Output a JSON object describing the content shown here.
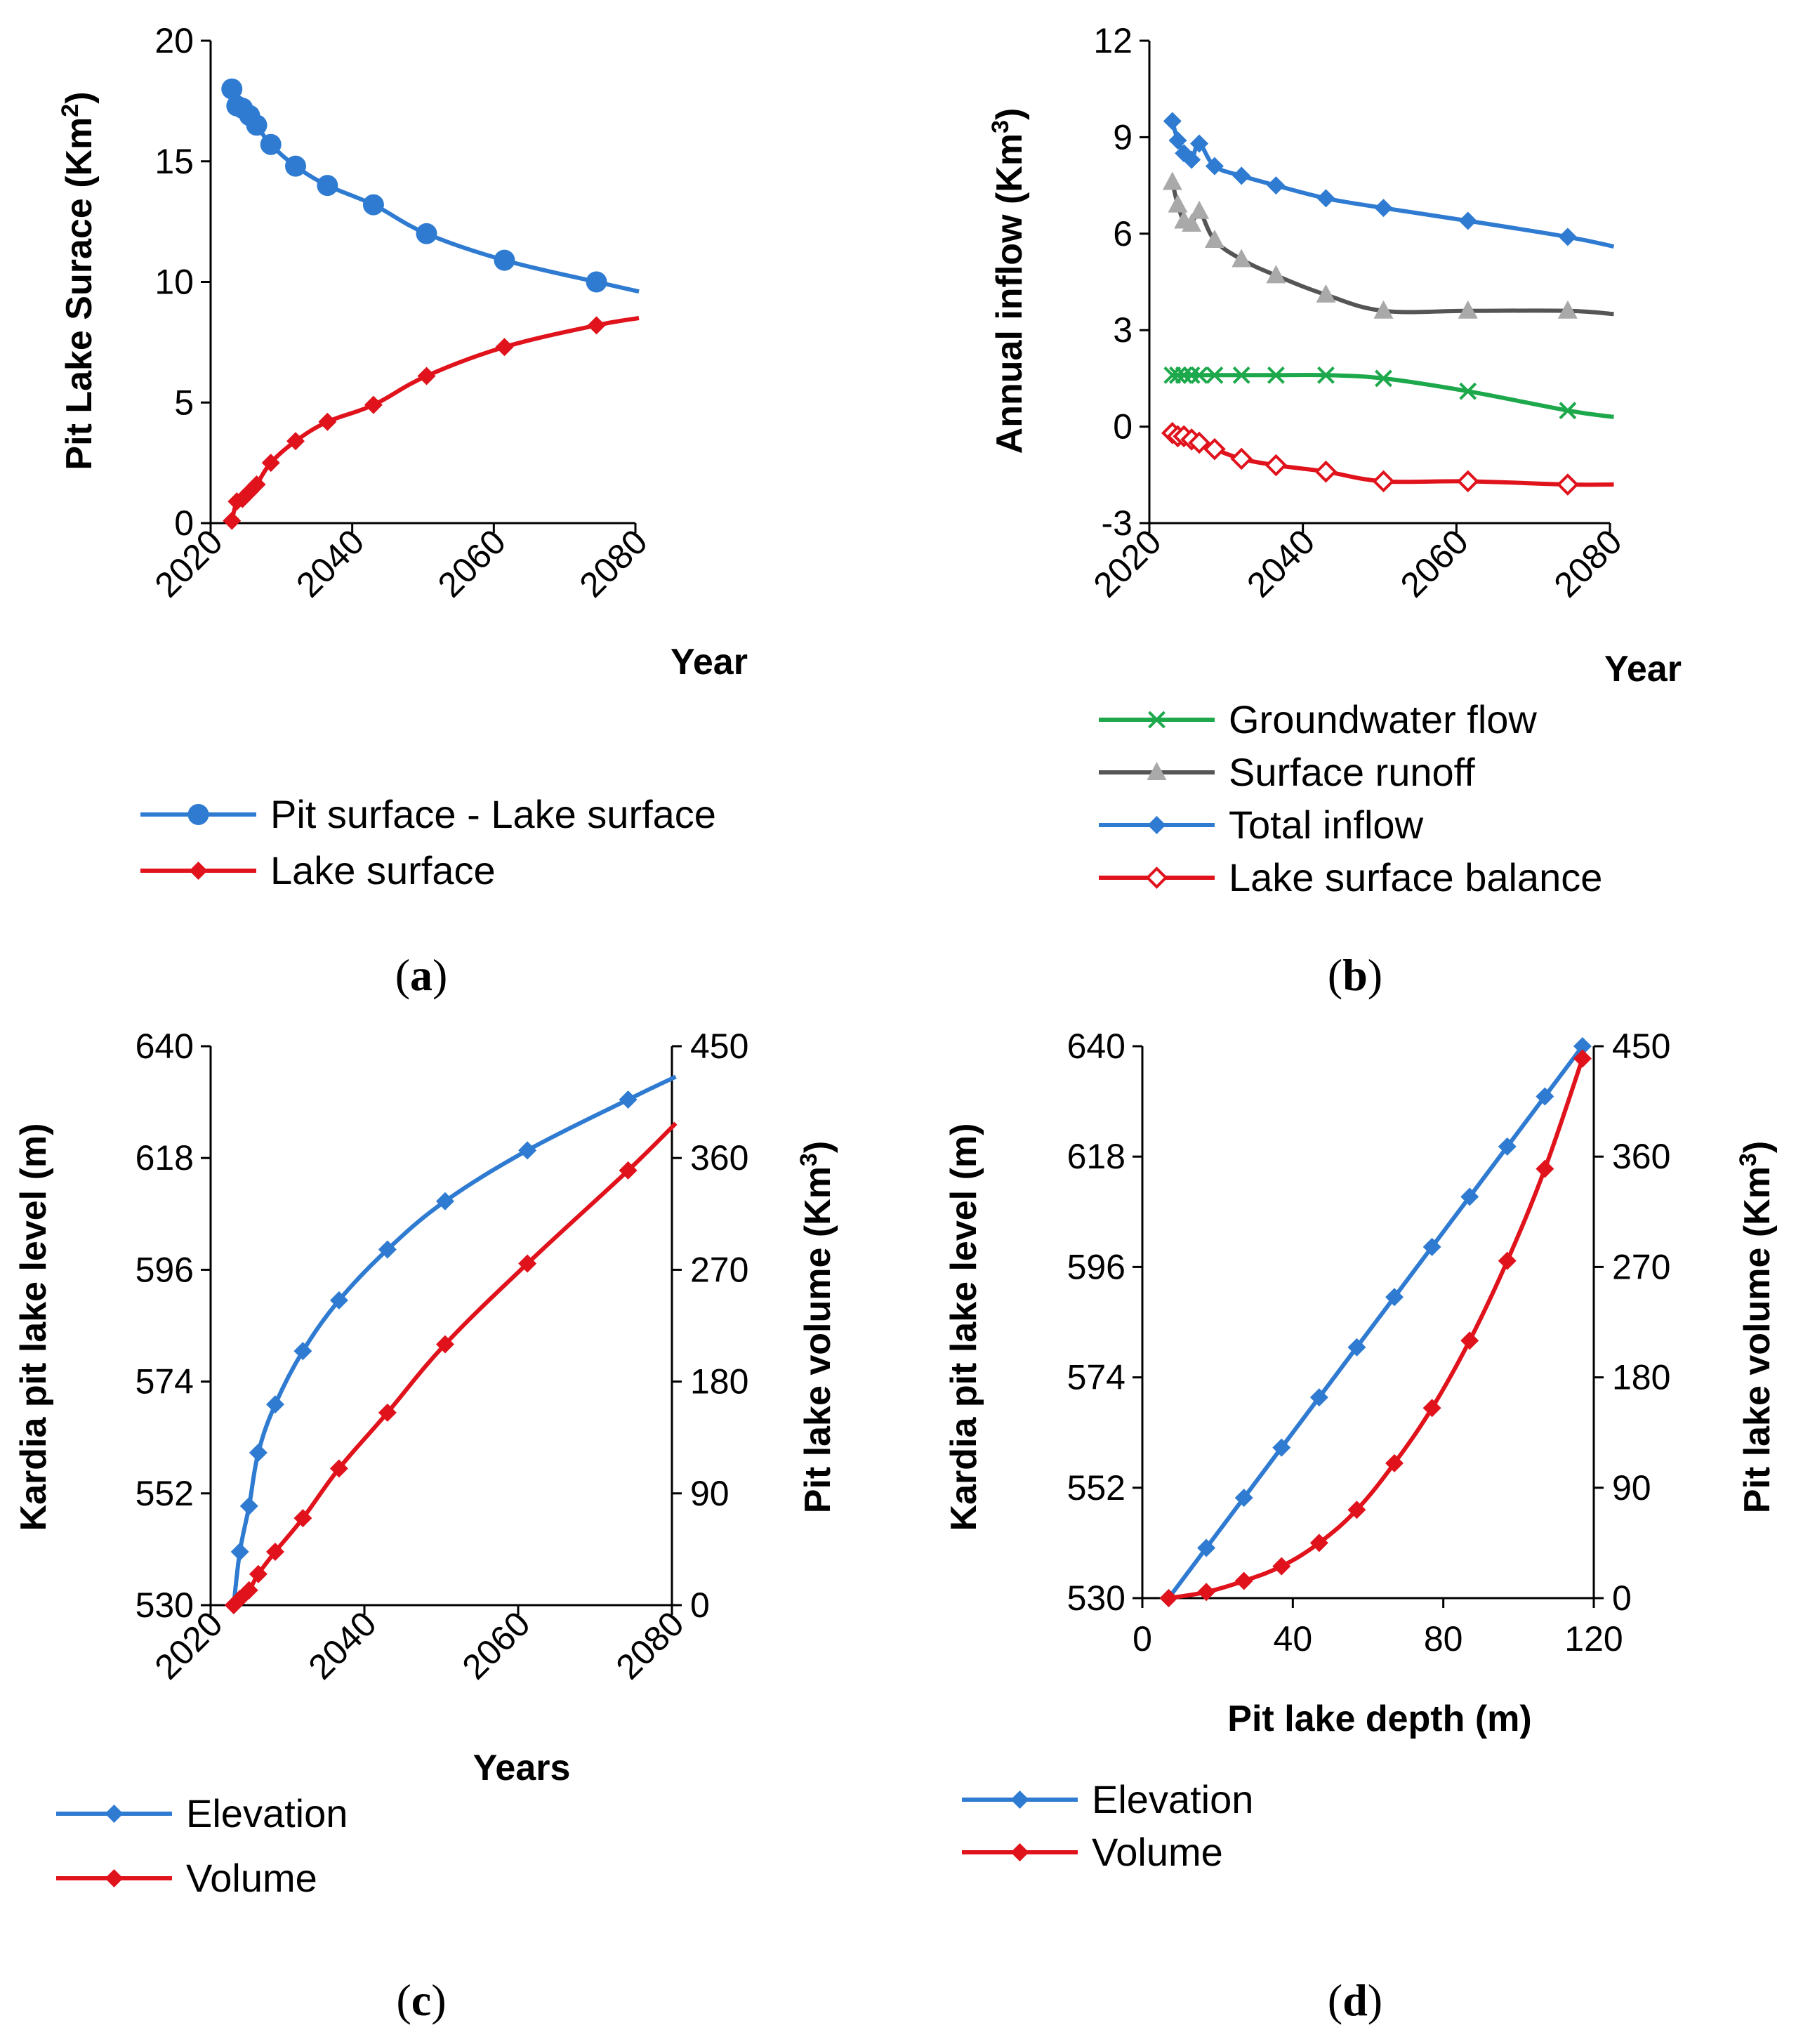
{
  "colors": {
    "blue": "#2e7bd1",
    "red": "#e0121b",
    "gray": "#555555",
    "gray_marker": "#a9a9a9",
    "green": "#1ca84b"
  },
  "chart_data": [
    {
      "id": "a",
      "type": "line",
      "caption_label": "a",
      "xlabel": "Year",
      "ylabel_parts": [
        "Pit Lake Surace (Km",
        "2",
        ")"
      ],
      "xlim": [
        2020,
        2080
      ],
      "ylim": [
        0,
        20
      ],
      "xticks": [
        "2020",
        "2040",
        "2060",
        "2080"
      ],
      "yticks": [
        "0",
        "5",
        "10",
        "15",
        "20"
      ],
      "series": [
        {
          "name": "Pit surface - Lake surface",
          "color": "blue",
          "marker": "circle",
          "x": [
            2023,
            2023.7,
            2024.5,
            2025.5,
            2026.5,
            2028.5,
            2032,
            2036.5,
            2043,
            2050.5,
            2061.5,
            2074.5,
            2080.5
          ],
          "y": [
            18.0,
            17.3,
            17.2,
            16.9,
            16.5,
            15.7,
            14.8,
            14.0,
            13.2,
            12.0,
            10.9,
            10.0,
            9.6
          ],
          "no_marker_last": true
        },
        {
          "name": "Lake surface",
          "color": "red",
          "marker": "diamond",
          "x": [
            2023,
            2023.7,
            2024.5,
            2025.5,
            2026.5,
            2028.5,
            2032,
            2036.5,
            2043,
            2050.5,
            2061.5,
            2074.5,
            2080.5
          ],
          "y": [
            0.1,
            0.9,
            1.0,
            1.3,
            1.6,
            2.5,
            3.4,
            4.2,
            4.9,
            6.1,
            7.3,
            8.2,
            8.5
          ],
          "no_marker_last": true
        }
      ]
    },
    {
      "id": "b",
      "type": "line",
      "caption_label": "b",
      "xlabel": "Year",
      "ylabel_parts": [
        "Annual  inflow (Km",
        "3",
        ")"
      ],
      "xlim": [
        2020,
        2080
      ],
      "ylim": [
        -3,
        12
      ],
      "xticks": [
        "2020",
        "2040",
        "2060",
        "2080"
      ],
      "yticks": [
        "-3",
        "0",
        "3",
        "6",
        "9",
        "12"
      ],
      "series": [
        {
          "name": "Groundwater flow",
          "color": "green",
          "marker": "x",
          "x": [
            2023,
            2023.7,
            2024.5,
            2025.5,
            2026.5,
            2028.5,
            2032,
            2036.5,
            2043,
            2050.5,
            2061.5,
            2074.5,
            2080.5
          ],
          "y": [
            1.6,
            1.6,
            1.6,
            1.6,
            1.6,
            1.6,
            1.6,
            1.6,
            1.6,
            1.5,
            1.1,
            0.5,
            0.3
          ],
          "no_marker_last": true
        },
        {
          "name": "Surface runoff",
          "color": "gray",
          "marker": "triangle",
          "x": [
            2023,
            2023.7,
            2024.5,
            2025.5,
            2026.5,
            2028.5,
            2032,
            2036.5,
            2043,
            2050.5,
            2061.5,
            2074.5,
            2080.5
          ],
          "y": [
            7.6,
            6.9,
            6.4,
            6.3,
            6.7,
            5.8,
            5.2,
            4.7,
            4.1,
            3.6,
            3.6,
            3.6,
            3.5
          ],
          "no_marker_last": true
        },
        {
          "name": "Total inflow",
          "color": "blue",
          "marker": "diamond",
          "x": [
            2023,
            2023.7,
            2024.5,
            2025.5,
            2026.5,
            2028.5,
            2032,
            2036.5,
            2043,
            2050.5,
            2061.5,
            2074.5,
            2080.5
          ],
          "y": [
            9.5,
            8.9,
            8.5,
            8.3,
            8.8,
            8.1,
            7.8,
            7.5,
            7.1,
            6.8,
            6.4,
            5.9,
            5.6
          ],
          "no_marker_last": true
        },
        {
          "name": "Lake surface balance",
          "color": "red",
          "marker": "diamond-open",
          "x": [
            2023,
            2023.7,
            2024.5,
            2025.5,
            2026.5,
            2028.5,
            2032,
            2036.5,
            2043,
            2050.5,
            2061.5,
            2074.5,
            2080.5
          ],
          "y": [
            -0.2,
            -0.3,
            -0.3,
            -0.4,
            -0.5,
            -0.7,
            -1.0,
            -1.2,
            -1.4,
            -1.7,
            -1.7,
            -1.8,
            -1.8
          ],
          "no_marker_last": true
        }
      ]
    },
    {
      "id": "c",
      "type": "line",
      "caption_label": "c",
      "xlabel": "Years",
      "ylabel_parts": [
        "Kardia pit lake level (m)"
      ],
      "y2label_parts": [
        "Pit lake volume (Km",
        "3",
        ")"
      ],
      "xlim": [
        2020,
        2080
      ],
      "ylim": [
        530,
        640
      ],
      "y2lim": [
        0,
        450
      ],
      "xticks": [
        "2020",
        "2040",
        "2060",
        "2080"
      ],
      "yticks": [
        "530",
        "552",
        "574",
        "596",
        "618",
        "640"
      ],
      "y2ticks": [
        "0",
        "90",
        "180",
        "270",
        "360",
        "450"
      ],
      "series": [
        {
          "name": "Elevation",
          "color": "blue",
          "marker": "diamond",
          "axis": "left",
          "x": [
            2023,
            2023.8,
            2025,
            2026.2,
            2028.4,
            2032,
            2036.7,
            2043,
            2050.5,
            2061.2,
            2074.3,
            2080.5
          ],
          "y": [
            530,
            540.5,
            549.5,
            560,
            569.5,
            580,
            590,
            600,
            609.5,
            619.5,
            629.5,
            634
          ],
          "no_marker_last": true
        },
        {
          "name": "Volume",
          "color": "red",
          "marker": "diamond",
          "axis": "right",
          "x": [
            2023,
            2023.8,
            2025,
            2026.2,
            2028.4,
            2032,
            2036.7,
            2043,
            2050.5,
            2061.2,
            2074.3,
            2080.5
          ],
          "y": [
            0,
            5,
            12,
            25,
            43,
            70,
            110,
            155,
            210,
            275,
            350,
            388
          ],
          "no_marker_last": true
        }
      ]
    },
    {
      "id": "d",
      "type": "line",
      "caption_label": "d",
      "xlabel": "Pit lake depth (m)",
      "ylabel_parts": [
        "Kardia pit lake level (m)"
      ],
      "y2label_parts": [
        "Pit lake volume (Km",
        "3",
        ")"
      ],
      "xlim": [
        0,
        120
      ],
      "ylim": [
        530,
        640
      ],
      "y2lim": [
        0,
        450
      ],
      "xticks": [
        "0",
        "40",
        "80",
        "120"
      ],
      "yticks": [
        "530",
        "552",
        "574",
        "596",
        "618",
        "640"
      ],
      "y2ticks": [
        "0",
        "90",
        "180",
        "270",
        "360",
        "450"
      ],
      "series": [
        {
          "name": "Elevation",
          "color": "blue",
          "marker": "diamond",
          "axis": "left",
          "x": [
            7,
            17,
            27,
            37,
            47,
            57,
            67,
            77,
            87,
            97,
            107,
            117
          ],
          "y": [
            530,
            540,
            550,
            560,
            570,
            580,
            590,
            600,
            610,
            620,
            630,
            640
          ]
        },
        {
          "name": "Volume",
          "color": "red",
          "marker": "diamond",
          "axis": "right",
          "x": [
            7,
            17,
            27,
            37,
            47,
            57,
            67,
            77,
            87,
            97,
            107,
            117
          ],
          "y": [
            0,
            5,
            14,
            26,
            45,
            72,
            110,
            155,
            210,
            275,
            350,
            440
          ]
        }
      ]
    }
  ]
}
